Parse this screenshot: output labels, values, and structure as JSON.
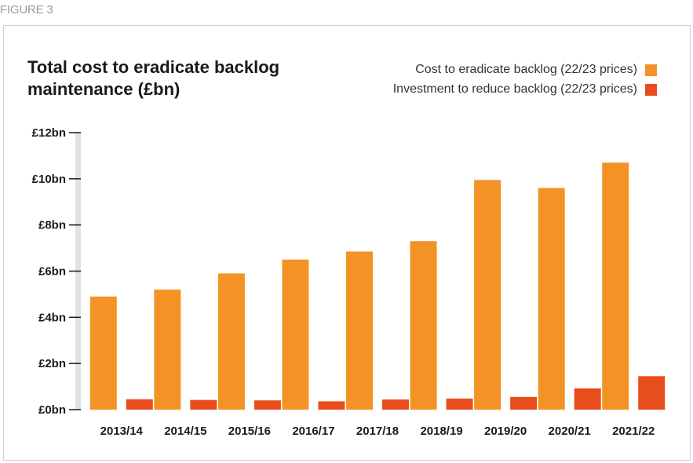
{
  "figure_label": "FIGURE 3",
  "chart_data": {
    "type": "bar",
    "title": "Total cost to eradicate backlog maintenance (£bn)",
    "categories": [
      "2013/14",
      "2014/15",
      "2015/16",
      "2016/17",
      "2017/18",
      "2018/19",
      "2019/20",
      "2020/21",
      "2021/22"
    ],
    "series": [
      {
        "name": "Cost to eradicate backlog (22/23 prices)",
        "color": "#f39325",
        "values": [
          4.9,
          5.2,
          5.9,
          6.5,
          6.85,
          7.3,
          9.95,
          9.6,
          10.7
        ]
      },
      {
        "name": "Investment to reduce backlog (22/23 prices)",
        "color": "#e84e1b",
        "values": [
          0.45,
          0.42,
          0.4,
          0.36,
          0.44,
          0.48,
          0.55,
          0.92,
          1.45
        ]
      }
    ],
    "ylim": [
      0,
      12
    ],
    "yticks": [
      0,
      2,
      4,
      6,
      8,
      10,
      12
    ],
    "ytick_labels": [
      "£0bn",
      "£2bn",
      "£4bn",
      "£6bn",
      "£8bn",
      "£10bn",
      "£12bn"
    ],
    "grid": false,
    "legend_position": "top-right"
  }
}
